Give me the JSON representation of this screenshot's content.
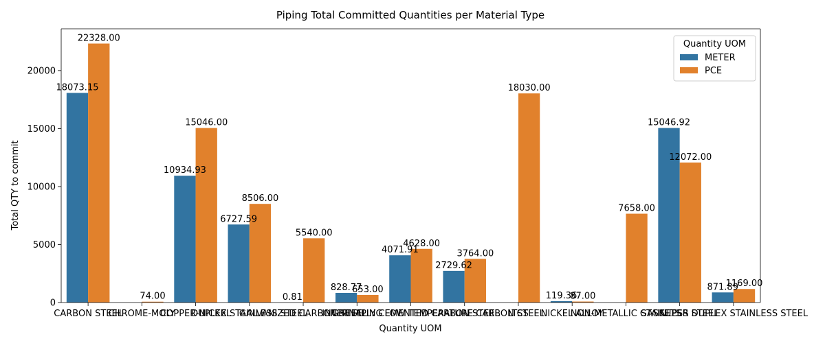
{
  "chart_data": {
    "type": "bar",
    "title": "Piping Total Committed Quantities per Material Type",
    "xlabel": "Quantity UOM",
    "ylabel": "Total QTY to commit",
    "ylim": [
      0,
      23600
    ],
    "yticks": [
      0,
      5000,
      10000,
      15000,
      20000
    ],
    "grid": false,
    "legend": {
      "title": "Quantity UOM",
      "placement": "top-right"
    },
    "categories": [
      "CARBON STEEL",
      "CHROME-MOLY",
      "COPPER-NICKEL",
      "DUPLEX STAINLESS STEEL",
      "GALVANIZED CARBON STEEL",
      "GRE PIPING",
      "INTERNALLY CEMENTED CARBON STEEL",
      "LOW TEMPERATURE CARBON STEEL",
      "LTCS",
      "NICKEL ALLOY",
      "NON-METALLIC GASKETS",
      "STAINLESS STEEL",
      "SUPER DUPLEX STAINLESS STEEL"
    ],
    "series": [
      {
        "name": "METER",
        "color": "#3274a1",
        "values": [
          18073.15,
          null,
          10934.93,
          6727.59,
          0.81,
          828.77,
          4071.91,
          2729.62,
          null,
          119.36,
          null,
          15046.92,
          871.89
        ],
        "labels": [
          "18073.15",
          "",
          "10934.93",
          "6727.59",
          "0.81",
          "828.77",
          "4071.91",
          "2729.62",
          "",
          "119.36",
          "",
          "15046.92",
          "871.89"
        ]
      },
      {
        "name": "PCE",
        "color": "#e1812c",
        "values": [
          22328.0,
          74.0,
          15046.0,
          8506.0,
          5540.0,
          653.0,
          4628.0,
          3764.0,
          18030.0,
          87.0,
          7658.0,
          12072.0,
          1169.0
        ],
        "labels": [
          "22328.00",
          "74.00",
          "15046.00",
          "8506.00",
          "5540.00",
          "653.00",
          "4628.00",
          "3764.00",
          "18030.00",
          "87.00",
          "7658.00",
          "12072.00",
          "1169.00"
        ]
      }
    ]
  }
}
